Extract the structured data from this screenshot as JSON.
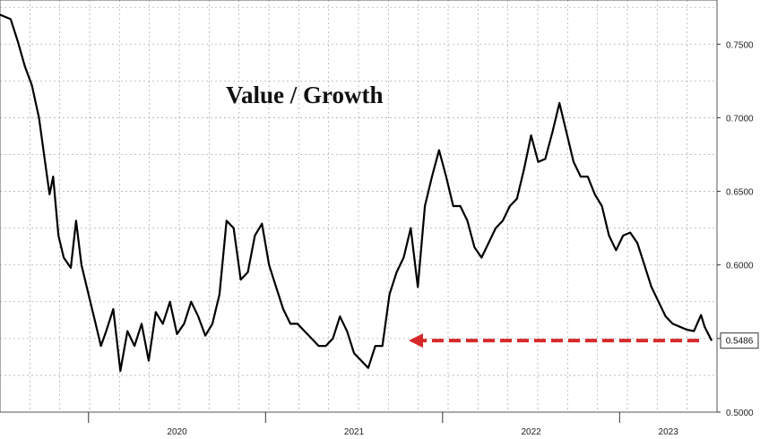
{
  "chart_data": {
    "type": "line",
    "title": "Value / Growth",
    "xlabel": "",
    "ylabel": "",
    "x_ticks": [
      "2020",
      "2021",
      "2022",
      "2023"
    ],
    "y_ticks": [
      "0.5000",
      "0.5500",
      "0.6000",
      "0.6500",
      "0.7000",
      "0.7500"
    ],
    "ylim": [
      0.5,
      0.78
    ],
    "xlim": [
      2019.5,
      2023.55
    ],
    "grid": true,
    "last_value": "0.5486",
    "annotation": "red dashed arrow pointing left at the last value level",
    "colors": {
      "line": "#000000",
      "arrow": "#d62a2a",
      "grid": "#b0b0b0"
    },
    "series": [
      {
        "x": [
          2019.5,
          2019.56,
          2019.6,
          2019.64,
          2019.68,
          2019.72,
          2019.76,
          2019.78,
          2019.8,
          2019.83,
          2019.86,
          2019.9,
          2019.93,
          2019.96,
          2020.0,
          2020.04,
          2020.07,
          2020.1,
          2020.14,
          2020.18,
          2020.22,
          2020.26,
          2020.3,
          2020.34,
          2020.38,
          2020.42,
          2020.46,
          2020.5,
          2020.54,
          2020.58,
          2020.62,
          2020.66,
          2020.7,
          2020.74,
          2020.78,
          2020.82,
          2020.86,
          2020.9,
          2020.94,
          2020.98,
          2021.02,
          2021.06,
          2021.1,
          2021.14,
          2021.18,
          2021.22,
          2021.26,
          2021.3,
          2021.34,
          2021.38,
          2021.42,
          2021.46,
          2021.5,
          2021.54,
          2021.58,
          2021.62,
          2021.66,
          2021.7,
          2021.74,
          2021.78,
          2021.82,
          2021.86,
          2021.9,
          2021.94,
          2021.98,
          2022.02,
          2022.06,
          2022.1,
          2022.14,
          2022.18,
          2022.22,
          2022.26,
          2022.3,
          2022.34,
          2022.38,
          2022.42,
          2022.46,
          2022.5,
          2022.54,
          2022.58,
          2022.62,
          2022.66,
          2022.7,
          2022.74,
          2022.78,
          2022.82,
          2022.86,
          2022.9,
          2022.94,
          2022.98,
          2023.02,
          2023.06,
          2023.1,
          2023.14,
          2023.18,
          2023.22,
          2023.26,
          2023.3,
          2023.34,
          2023.38,
          2023.42,
          2023.46,
          2023.48,
          2023.52
        ],
        "y": [
          0.77,
          0.767,
          0.752,
          0.735,
          0.722,
          0.7,
          0.665,
          0.648,
          0.66,
          0.62,
          0.605,
          0.598,
          0.63,
          0.6,
          0.58,
          0.56,
          0.545,
          0.555,
          0.57,
          0.528,
          0.555,
          0.545,
          0.56,
          0.535,
          0.568,
          0.56,
          0.575,
          0.553,
          0.56,
          0.575,
          0.565,
          0.552,
          0.56,
          0.58,
          0.63,
          0.625,
          0.59,
          0.595,
          0.62,
          0.628,
          0.6,
          0.585,
          0.57,
          0.56,
          0.56,
          0.555,
          0.55,
          0.545,
          0.545,
          0.55,
          0.565,
          0.555,
          0.54,
          0.535,
          0.53,
          0.545,
          0.545,
          0.58,
          0.595,
          0.605,
          0.625,
          0.585,
          0.64,
          0.66,
          0.678,
          0.66,
          0.64,
          0.64,
          0.63,
          0.612,
          0.605,
          0.615,
          0.625,
          0.63,
          0.64,
          0.645,
          0.665,
          0.688,
          0.67,
          0.672,
          0.69,
          0.71,
          0.69,
          0.67,
          0.66,
          0.66,
          0.648,
          0.64,
          0.62,
          0.61,
          0.62,
          0.622,
          0.615,
          0.6,
          0.585,
          0.575,
          0.565,
          0.56,
          0.558,
          0.556,
          0.555,
          0.566,
          0.558,
          0.5486
        ]
      }
    ]
  }
}
